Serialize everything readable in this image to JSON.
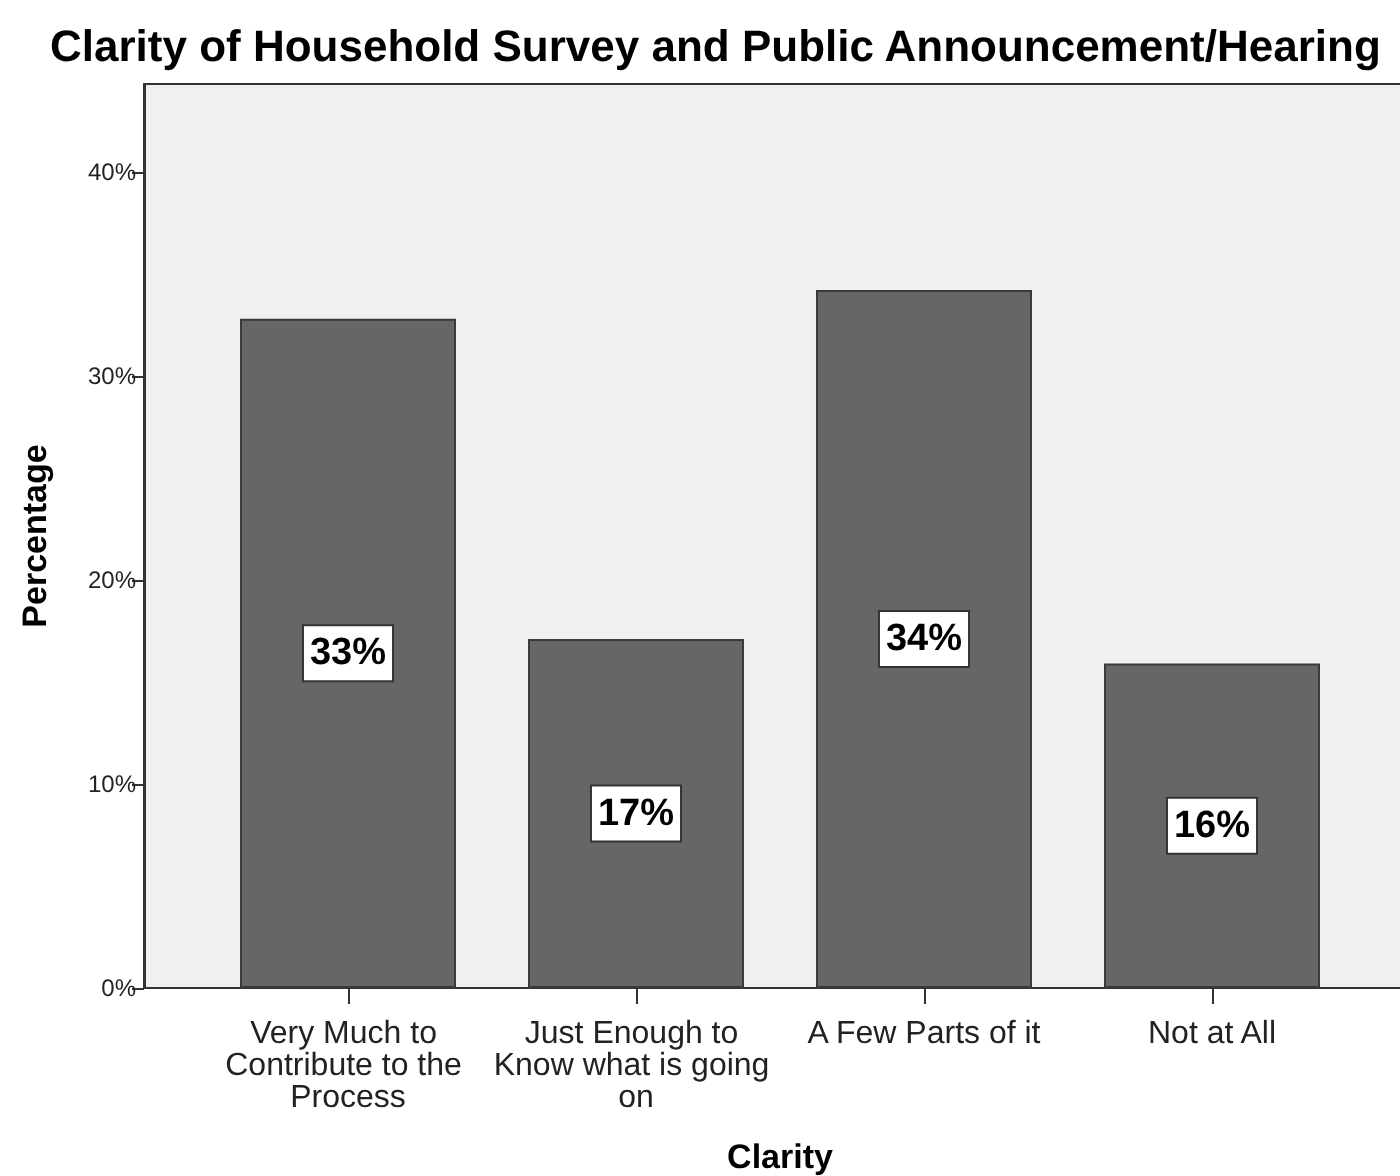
{
  "chart_data": {
    "type": "bar",
    "title": "Clarity of Household Survey and Public Announcement/Hearing",
    "xlabel": "Clarity",
    "ylabel": "Percentage",
    "categories": [
      "Very Much to Contribute to the Process",
      "Just Enough to Know what is going on",
      "A Few Parts of it",
      "Not at All"
    ],
    "values": [
      32.8,
      17.1,
      34.2,
      15.9
    ],
    "value_labels": [
      "33%",
      "17%",
      "34%",
      "16%"
    ],
    "color": "#666666",
    "ylim": [
      0,
      44.3
    ],
    "yticks": [
      {
        "value": 0,
        "label": "0%"
      },
      {
        "value": 10,
        "label": "10%"
      },
      {
        "value": 20,
        "label": "20%"
      },
      {
        "value": 30,
        "label": "30%"
      },
      {
        "value": 40,
        "label": "40%"
      }
    ]
  }
}
